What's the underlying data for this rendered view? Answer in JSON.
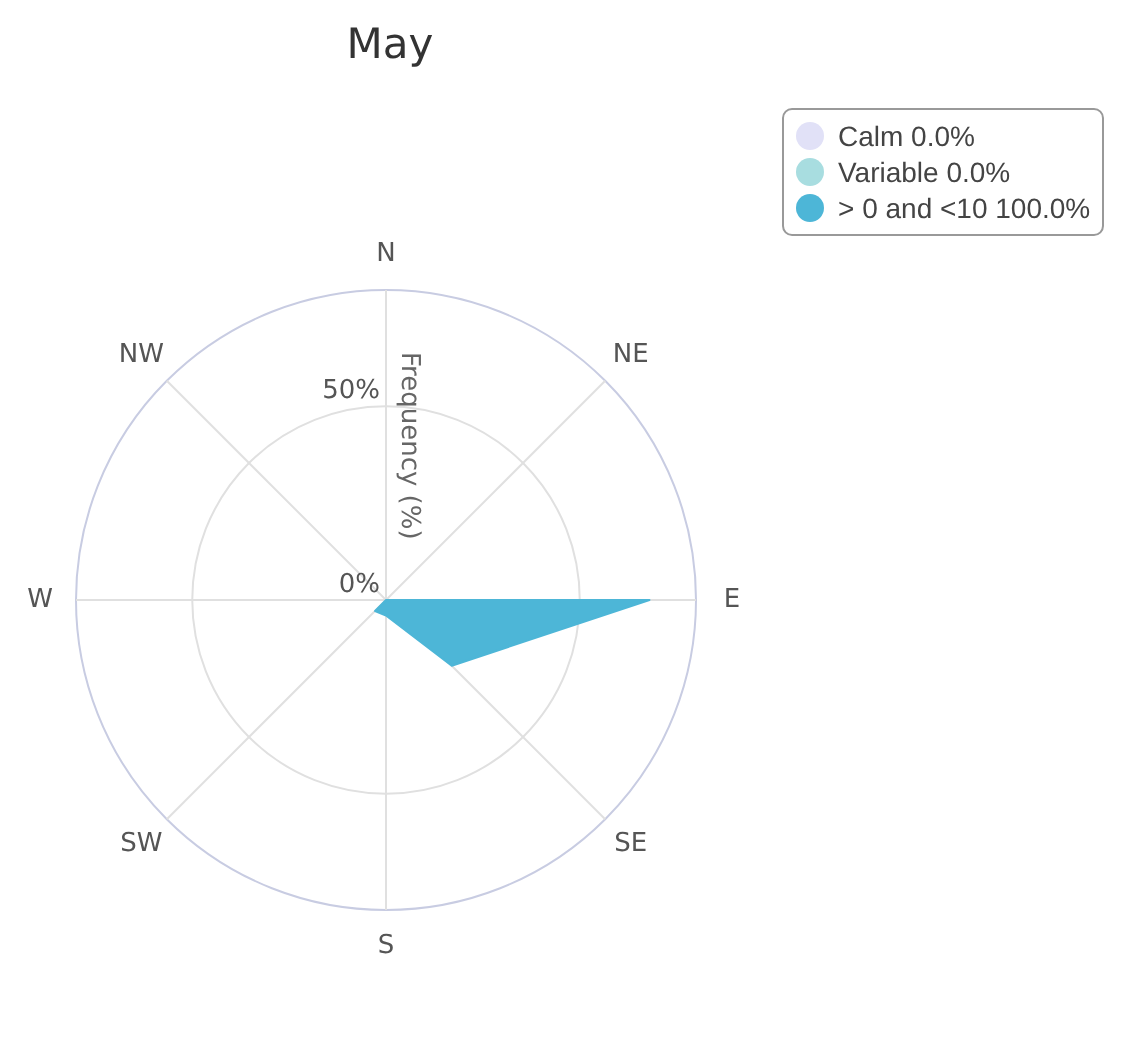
{
  "chart_data": {
    "type": "radar",
    "title": "May",
    "ylabel": "Frequency (%)",
    "categories": [
      "N",
      "NE",
      "E",
      "SE",
      "S",
      "SW",
      "W",
      "NW"
    ],
    "series": [
      {
        "name": "> 0 and <10 100.0%",
        "color": "#4db6d7",
        "values": [
          0,
          0,
          68,
          24,
          4,
          4,
          0,
          0
        ]
      },
      {
        "name": "Variable 0.0%",
        "color": "#a8dde0",
        "values": [
          null,
          null,
          null,
          null,
          null,
          null,
          null,
          null
        ]
      },
      {
        "name": "Calm 0.0%",
        "color": "#e1e1f7",
        "values": [
          null,
          null,
          null,
          null,
          null,
          null,
          null,
          null
        ]
      }
    ],
    "ylim": [
      0,
      80
    ],
    "yticks": [
      {
        "value": 0,
        "label": "0%"
      },
      {
        "value": 50,
        "label": "50%"
      }
    ],
    "grid": true,
    "legend": "top right"
  }
}
